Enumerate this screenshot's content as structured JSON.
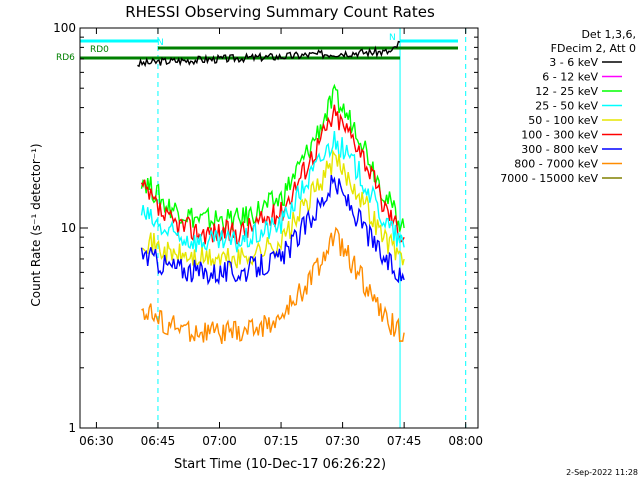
{
  "title": "RHESSI Observing Summary Count Rates",
  "footer_date": "2-Sep-2022 11:28",
  "colors": {
    "frame": "#000000",
    "cyan_marker": "#00ffff",
    "dark_green": "#008000"
  },
  "legend": {
    "header_line1": "Det 1,3,6,",
    "header_line2": "FDecim 2, Att 0",
    "entries": [
      {
        "label": "3 - 6 keV",
        "color": "#000000"
      },
      {
        "label": "6 - 12 keV",
        "color": "#ff00ff"
      },
      {
        "label": "12 - 25 keV",
        "color": "#00ff00"
      },
      {
        "label": "25 - 50 keV",
        "color": "#00ffff"
      },
      {
        "label": "50 - 100 keV",
        "color": "#e6e600"
      },
      {
        "label": "100 - 300 keV",
        "color": "#ff0000"
      },
      {
        "label": "300 - 800 keV",
        "color": "#0000ff"
      },
      {
        "label": "800 - 7000 keV",
        "color": "#ff8c00"
      },
      {
        "label": "7000 - 15000 keV",
        "color": "#808000"
      }
    ]
  },
  "annotations": {
    "rd0": "RD0",
    "rd6": "RD6",
    "n": "N",
    "n2": "N"
  },
  "chart_data": {
    "type": "line",
    "title": "RHESSI Observing Summary Count Rates",
    "xlabel": "Start Time (10-Dec-17 06:26:22)",
    "ylabel": "Count Rate (s⁻¹ detector⁻¹)",
    "ylog": true,
    "ylim": [
      1,
      100
    ],
    "xlim_minutes": [
      "06:26",
      "08:03"
    ],
    "xticks": [
      "06:30",
      "06:45",
      "07:00",
      "07:15",
      "07:30",
      "07:45",
      "08:00"
    ],
    "yticks": [
      "1",
      "10",
      "100"
    ],
    "series": [
      {
        "name": "3 - 6 keV",
        "color": "#000000",
        "x": [
          "06:40",
          "06:46",
          "07:00",
          "07:15",
          "07:30",
          "07:42",
          "07:44"
        ],
        "y": [
          66,
          68,
          70,
          72,
          75,
          76,
          85
        ]
      },
      {
        "name": "12 - 25 keV",
        "color": "#00ff00",
        "x": [
          "06:41",
          "06:47",
          "06:55",
          "07:05",
          "07:15",
          "07:22",
          "07:28",
          "07:34",
          "07:40",
          "07:45"
        ],
        "y": [
          18,
          13,
          11,
          11,
          14,
          25,
          45,
          30,
          15,
          10
        ]
      },
      {
        "name": "100 - 300 keV",
        "color": "#ff0000",
        "x": [
          "06:41",
          "06:47",
          "06:55",
          "07:05",
          "07:15",
          "07:22",
          "07:28",
          "07:34",
          "07:40",
          "07:45"
        ],
        "y": [
          16,
          11,
          9.5,
          9.5,
          12,
          22,
          37,
          26,
          13,
          9
        ]
      },
      {
        "name": "25 - 50 keV",
        "color": "#00ffff",
        "x": [
          "06:41",
          "06:47",
          "06:55",
          "07:05",
          "07:15",
          "07:22",
          "07:28",
          "07:34",
          "07:40",
          "07:45"
        ],
        "y": [
          12,
          9.5,
          8.5,
          8.5,
          10.5,
          18,
          28,
          19,
          11,
          8
        ]
      },
      {
        "name": "50 - 100 keV",
        "color": "#e6e600",
        "x": [
          "06:41",
          "06:47",
          "06:55",
          "07:05",
          "07:15",
          "07:22",
          "07:28",
          "07:34",
          "07:40",
          "07:45"
        ],
        "y": [
          9,
          7.5,
          7,
          7,
          8.5,
          14,
          22,
          15,
          9,
          7
        ]
      },
      {
        "name": "300 - 800 keV",
        "color": "#0000ff",
        "x": [
          "06:41",
          "06:47",
          "06:55",
          "07:05",
          "07:15",
          "07:22",
          "07:28",
          "07:34",
          "07:40",
          "07:45"
        ],
        "y": [
          7.5,
          6.5,
          6,
          6,
          7,
          11,
          17,
          11,
          7,
          5.5
        ]
      },
      {
        "name": "800 - 7000 keV",
        "color": "#ff8c00",
        "x": [
          "06:41",
          "06:47",
          "06:55",
          "07:05",
          "07:15",
          "07:22",
          "07:28",
          "07:34",
          "07:40",
          "07:45"
        ],
        "y": [
          4,
          3.3,
          3,
          3,
          3.5,
          5.5,
          9,
          6,
          3.5,
          3
        ]
      }
    ],
    "vertical_markers": [
      {
        "x": "06:26",
        "style": "solid",
        "color": "#00ffff"
      },
      {
        "x": "06:45",
        "style": "dashed",
        "color": "#00ffff"
      },
      {
        "x": "07:44",
        "style": "solid",
        "color": "#00ffff"
      },
      {
        "x": "08:00",
        "style": "dashed",
        "color": "#00ffff"
      }
    ]
  }
}
